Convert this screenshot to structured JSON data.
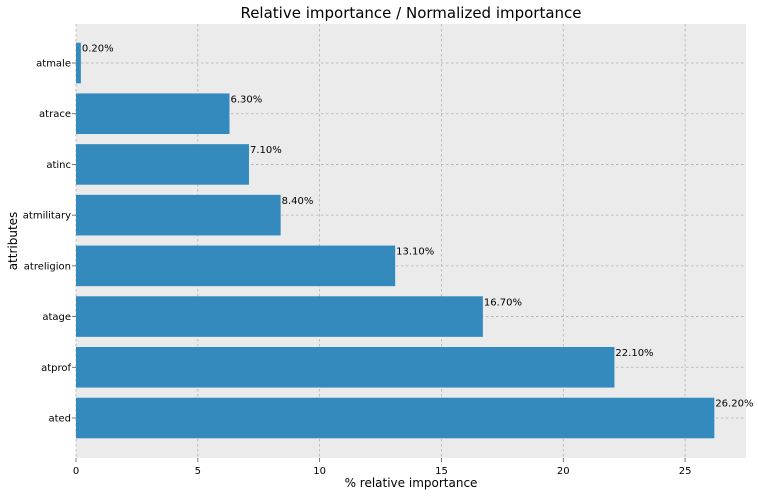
{
  "chart_data": {
    "type": "bar",
    "orientation": "horizontal",
    "title": "Relative importance / Normalized importance",
    "xlabel": "% relative importance",
    "ylabel": "attributes",
    "categories": [
      "atmale",
      "atrace",
      "atinc",
      "atmilitary",
      "atreligion",
      "atage",
      "atprof",
      "ated"
    ],
    "values": [
      0.2,
      6.3,
      7.1,
      8.4,
      13.1,
      16.7,
      22.1,
      26.2
    ],
    "data_labels": [
      "0.20%",
      "6.30%",
      "7.10%",
      "8.40%",
      "13.10%",
      "16.70%",
      "22.10%",
      "26.20%"
    ],
    "xlim": [
      0,
      27.5
    ],
    "xticks": [
      0,
      5,
      10,
      15,
      20,
      25
    ],
    "xtick_labels": [
      "0",
      "5",
      "10",
      "15",
      "20",
      "25"
    ],
    "grid": true,
    "colors": {
      "bar": "#348ABD",
      "plot_background": "#EBEBEB",
      "grid": "#B0B0B0"
    }
  }
}
